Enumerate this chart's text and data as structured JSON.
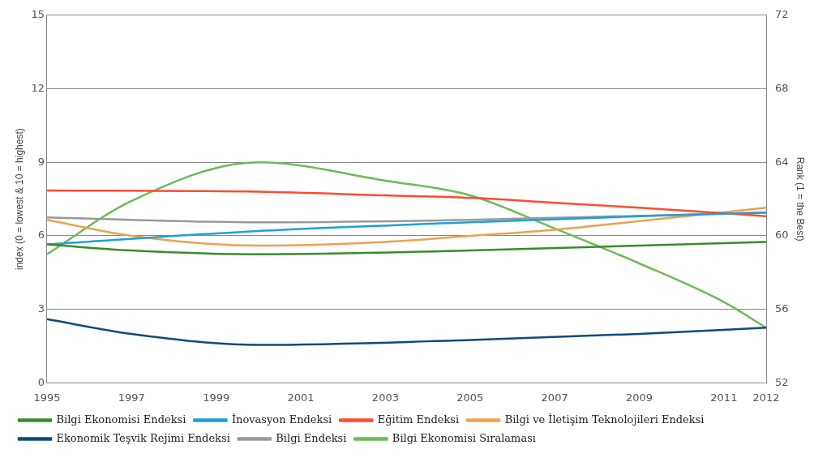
{
  "chart_data": {
    "type": "line",
    "ylabel": "index (0 = lowest & 10 = highest)",
    "y2label": "Rank (1 = the Best)",
    "xlim": [
      1995,
      2012
    ],
    "xticks": [
      1995,
      1997,
      1999,
      2001,
      2003,
      2005,
      2007,
      2009,
      2011,
      2012
    ],
    "ylim": [
      0,
      15
    ],
    "yticks": [
      0,
      3,
      6,
      9,
      12,
      15
    ],
    "y2lim": [
      52,
      72
    ],
    "y2ticks": [
      52,
      56,
      60,
      64,
      68,
      72
    ],
    "grid": "y",
    "legend": "bottom",
    "marker": "none",
    "line_style": "solid",
    "series": [
      {
        "name": "Bilgi Ekonomisi Endeksi",
        "color": "#3a8a2e",
        "x": [
          1995,
          1997,
          2000,
          2005,
          2009,
          2012
        ],
        "values": [
          5.65,
          5.4,
          5.25,
          5.4,
          5.6,
          5.75
        ]
      },
      {
        "name": "İnovasyon Endeksi",
        "color": "#1ea0dc",
        "x": [
          1995,
          2000,
          2005,
          2009,
          2012
        ],
        "values": [
          5.65,
          6.2,
          6.55,
          6.8,
          6.95
        ]
      },
      {
        "name": "Eğitim Endeksi",
        "color": "#ff4b2e",
        "x": [
          1995,
          2000,
          2003,
          2005,
          2007,
          2009,
          2012
        ],
        "values": [
          7.85,
          7.8,
          7.65,
          7.55,
          7.35,
          7.15,
          6.8
        ]
      },
      {
        "name": "Bilgi ve İletişim Teknolojileri Endeksi",
        "color": "#f0a050",
        "x": [
          1995,
          1997,
          2000,
          2003,
          2005,
          2007,
          2009,
          2012
        ],
        "values": [
          6.65,
          6.0,
          5.6,
          5.75,
          6.0,
          6.25,
          6.6,
          7.15
        ]
      },
      {
        "name": "Ekonomik Teşvik Rejimi Endeksi",
        "color": "#0e4a80",
        "x": [
          1995,
          1997,
          2000,
          2005,
          2009,
          2012
        ],
        "values": [
          2.6,
          2.0,
          1.55,
          1.75,
          2.0,
          2.25
        ]
      },
      {
        "name": "Bilgi Endeksi",
        "color": "#999999",
        "x": [
          1995,
          2000,
          2005,
          2012
        ],
        "values": [
          6.75,
          6.55,
          6.65,
          6.95
        ]
      },
      {
        "name": "Bilgi Ekonomisi Sıralaması",
        "color": "#6cbb55",
        "axis": "y2",
        "x": [
          1995,
          1997,
          2000,
          2003,
          2005,
          2007,
          2009,
          2011,
          2012
        ],
        "values": [
          59.0,
          61.9,
          64.0,
          63.0,
          62.2,
          60.4,
          58.5,
          56.4,
          55.0
        ]
      }
    ]
  }
}
